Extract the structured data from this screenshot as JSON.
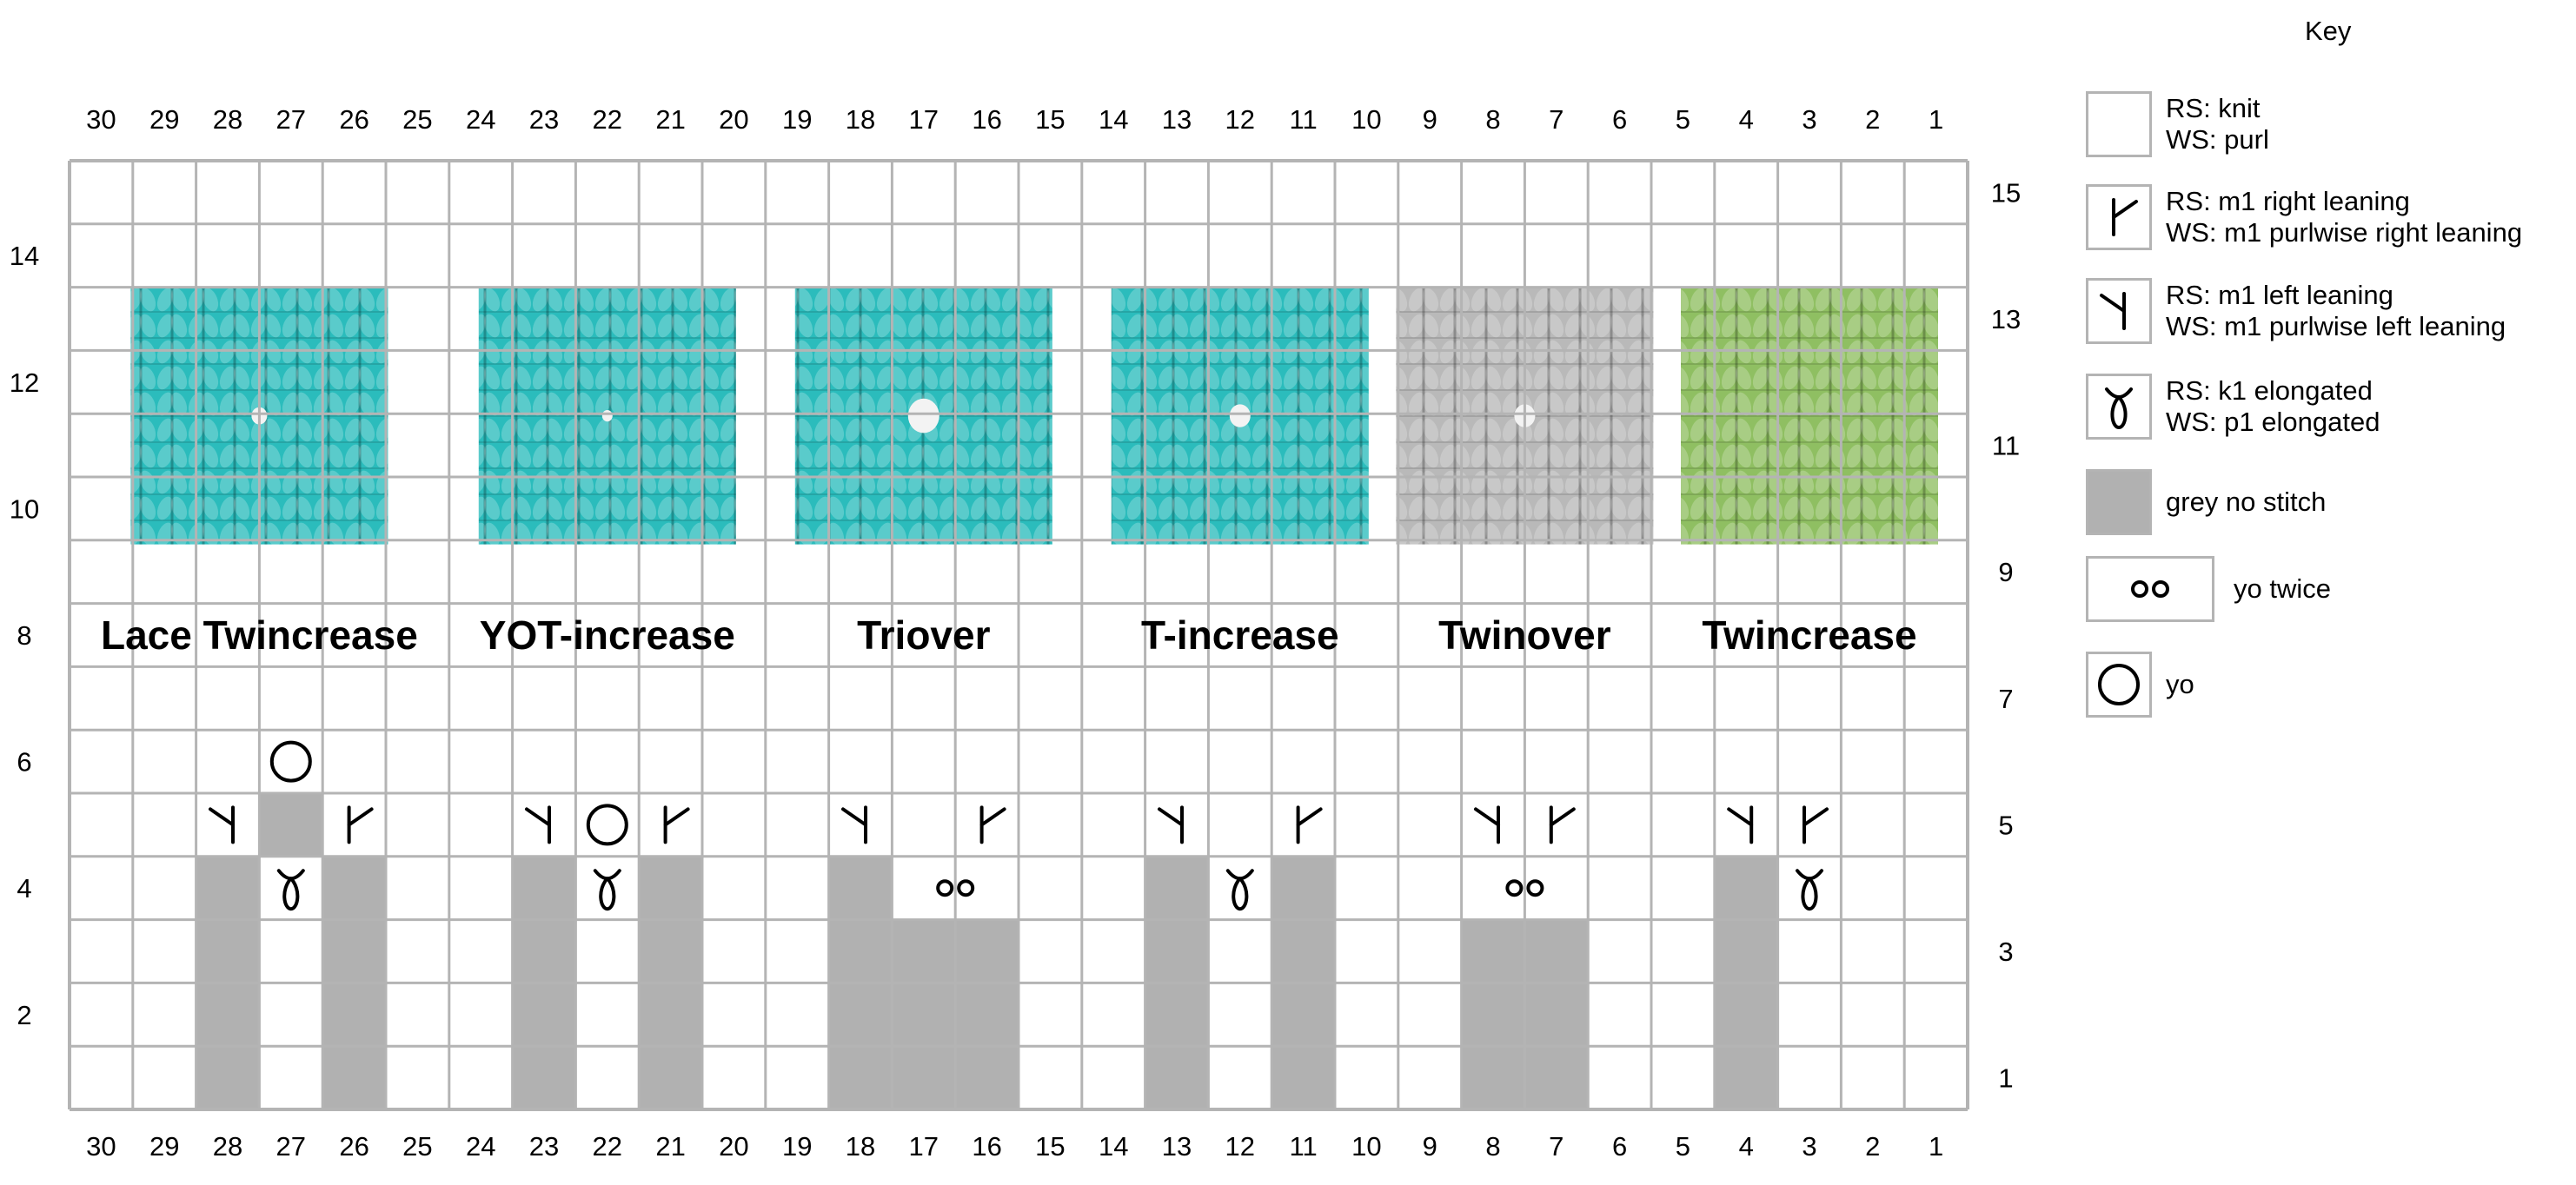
{
  "chart": {
    "columns": 30,
    "rows": 15,
    "column_numbers": [
      30,
      29,
      28,
      27,
      26,
      25,
      24,
      23,
      22,
      21,
      20,
      19,
      18,
      17,
      16,
      15,
      14,
      13,
      12,
      11,
      10,
      9,
      8,
      7,
      6,
      5,
      4,
      3,
      2,
      1
    ],
    "right_row_numbers": [
      15,
      13,
      11,
      9,
      7,
      5,
      3,
      1
    ],
    "left_row_numbers": [
      14,
      12,
      10,
      8,
      6,
      4,
      2
    ],
    "grid_color": "#b4b4b4",
    "no_stitch_color": "#b1b1b1",
    "grey_no_stitch_cells": [
      {
        "col": 28,
        "from_row": 1,
        "to_row": 4
      },
      {
        "col": 26,
        "from_row": 1,
        "to_row": 4
      },
      {
        "col": 27,
        "from_row": 5,
        "to_row": 5
      },
      {
        "col": 23,
        "from_row": 1,
        "to_row": 4
      },
      {
        "col": 21,
        "from_row": 1,
        "to_row": 4
      },
      {
        "col": 18,
        "from_row": 1,
        "to_row": 4
      },
      {
        "col": 17,
        "from_row": 1,
        "to_row": 3
      },
      {
        "col": 16,
        "from_row": 1,
        "to_row": 3
      },
      {
        "col": 13,
        "from_row": 1,
        "to_row": 4
      },
      {
        "col": 11,
        "from_row": 1,
        "to_row": 4
      },
      {
        "col": 8,
        "from_row": 1,
        "to_row": 3
      },
      {
        "col": 7,
        "from_row": 1,
        "to_row": 3
      },
      {
        "col": 4,
        "from_row": 1,
        "to_row": 4
      }
    ],
    "symbols": [
      {
        "type": "yo",
        "col": 27,
        "row": 6
      },
      {
        "type": "m1-left",
        "col": 28,
        "row": 5
      },
      {
        "type": "m1-right",
        "col": 26,
        "row": 5
      },
      {
        "type": "k1-elongated",
        "col": 27,
        "row": 4
      },
      {
        "type": "m1-left",
        "col": 23,
        "row": 5
      },
      {
        "type": "yo",
        "col": 22,
        "row": 5
      },
      {
        "type": "m1-right",
        "col": 21,
        "row": 5
      },
      {
        "type": "k1-elongated",
        "col": 22,
        "row": 4
      },
      {
        "type": "m1-left",
        "col": 18,
        "row": 5
      },
      {
        "type": "m1-right",
        "col": 16,
        "row": 5
      },
      {
        "type": "yo-twice",
        "col": 17,
        "row": 4,
        "span": 2
      },
      {
        "type": "m1-left",
        "col": 13,
        "row": 5
      },
      {
        "type": "m1-right",
        "col": 11,
        "row": 5
      },
      {
        "type": "k1-elongated",
        "col": 12,
        "row": 4
      },
      {
        "type": "m1-left",
        "col": 8,
        "row": 5
      },
      {
        "type": "m1-right",
        "col": 7,
        "row": 5
      },
      {
        "type": "yo-twice",
        "col": 8,
        "row": 4,
        "span": 2
      },
      {
        "type": "m1-left",
        "col": 4,
        "row": 5
      },
      {
        "type": "m1-right",
        "col": 3,
        "row": 5
      },
      {
        "type": "k1-elongated",
        "col": 3,
        "row": 4
      }
    ],
    "techniques": [
      {
        "label": "Lace Twincrease",
        "from_col": 30,
        "to_col": 25,
        "swatch_color": "#2bbcbc",
        "hole": "small"
      },
      {
        "label": "YOT-increase",
        "from_col": 24,
        "to_col": 20,
        "swatch_color": "#2bbcbc",
        "hole": "tiny"
      },
      {
        "label": "Triover",
        "from_col": 19,
        "to_col": 15,
        "swatch_color": "#2bbcbc",
        "hole": "big"
      },
      {
        "label": "T-increase",
        "from_col": 14,
        "to_col": 10,
        "swatch_color": "#2bbcbc",
        "hole": "medium"
      },
      {
        "label": "Twinover",
        "from_col": 9,
        "to_col": 6,
        "swatch_color": "#b9b9b9",
        "hole": "medium"
      },
      {
        "label": "Twincrease",
        "from_col": 5,
        "to_col": 1,
        "swatch_color": "#8fbf62",
        "hole": "none"
      }
    ]
  },
  "key": {
    "title": "Key",
    "items": [
      {
        "symbol": "knit",
        "lines": [
          "RS: knit",
          "WS: purl"
        ]
      },
      {
        "symbol": "m1-right",
        "lines": [
          "RS: m1 right leaning",
          "WS: m1 purlwise right leaning"
        ]
      },
      {
        "symbol": "m1-left",
        "lines": [
          "RS: m1 left leaning",
          "WS: m1 purlwise left leaning"
        ]
      },
      {
        "symbol": "k1-elongated",
        "lines": [
          "RS: k1 elongated",
          "WS: p1 elongated"
        ]
      },
      {
        "symbol": "no-stitch",
        "lines": [
          "grey no stitch"
        ]
      },
      {
        "symbol": "yo-twice",
        "lines": [
          "yo twice"
        ]
      },
      {
        "symbol": "yo",
        "lines": [
          "yo"
        ]
      }
    ]
  }
}
